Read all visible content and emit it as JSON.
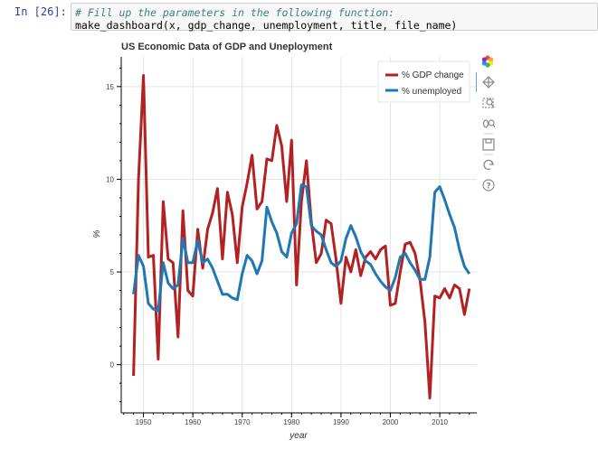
{
  "cell": {
    "prompt": "In [26]:",
    "comment": "# Fill up the parameters in the following function:",
    "code": "make_dashboard(x, gdp_change, unemployment, title, file_name)"
  },
  "toolbar": {
    "icons": [
      "bokeh-logo-icon",
      "pan-icon",
      "box-zoom-icon",
      "wheel-zoom-icon",
      "save-icon",
      "reset-icon",
      "help-icon"
    ]
  },
  "chart_data": {
    "type": "line",
    "title": "US Economic Data of GDP and Uneployment",
    "xlabel": "year",
    "ylabel": "%",
    "xlim": [
      1945.5,
      2017.5
    ],
    "ylim": [
      -2.6,
      16.6
    ],
    "xticks": [
      1950,
      1960,
      1970,
      1980,
      1990,
      2000,
      2010
    ],
    "yticks": [
      0,
      5,
      10,
      15
    ],
    "grid": true,
    "legend_position": "top-right",
    "x": [
      1948,
      1949,
      1950,
      1951,
      1952,
      1953,
      1954,
      1955,
      1956,
      1957,
      1958,
      1959,
      1960,
      1961,
      1962,
      1963,
      1964,
      1965,
      1966,
      1967,
      1968,
      1969,
      1970,
      1971,
      1972,
      1973,
      1974,
      1975,
      1976,
      1977,
      1978,
      1979,
      1980,
      1981,
      1982,
      1983,
      1984,
      1985,
      1986,
      1987,
      1988,
      1989,
      1990,
      1991,
      1992,
      1993,
      1994,
      1995,
      1996,
      1997,
      1998,
      1999,
      2000,
      2001,
      2002,
      2003,
      2004,
      2005,
      2006,
      2007,
      2008,
      2009,
      2010,
      2011,
      2012,
      2013,
      2014,
      2015,
      2016
    ],
    "series": [
      {
        "name": "% GDP change",
        "color": "#b22222",
        "values": [
          -0.6,
          10.0,
          15.6,
          5.8,
          5.9,
          0.3,
          8.8,
          5.7,
          5.5,
          1.5,
          8.3,
          4.0,
          3.7,
          7.3,
          5.2,
          7.3,
          8.2,
          9.5,
          5.7,
          9.3,
          8.1,
          5.5,
          8.5,
          9.8,
          11.3,
          8.4,
          8.8,
          11.1,
          11.0,
          12.9,
          11.8,
          8.8,
          12.1,
          4.3,
          8.8,
          11.0,
          7.7,
          5.5,
          6.0,
          7.8,
          7.6,
          5.7,
          3.3,
          5.8,
          5.0,
          6.2,
          4.8,
          5.8,
          6.1,
          5.7,
          6.2,
          6.4,
          3.2,
          3.3,
          5.0,
          6.5,
          6.6,
          6.0,
          4.6,
          2.3,
          -1.8,
          3.7,
          3.6,
          4.1,
          3.6,
          4.3,
          4.1,
          2.7,
          4.1
        ]
      },
      {
        "name": "% unemployed",
        "color": "#1f77b4",
        "values": [
          3.8,
          5.9,
          5.3,
          3.3,
          3.0,
          2.9,
          5.5,
          4.4,
          4.1,
          4.3,
          6.8,
          5.5,
          5.5,
          6.7,
          5.5,
          5.7,
          5.2,
          4.5,
          3.8,
          3.8,
          3.6,
          3.5,
          4.9,
          5.9,
          5.6,
          4.9,
          5.6,
          8.5,
          7.7,
          7.1,
          6.1,
          5.8,
          7.1,
          7.6,
          9.7,
          9.6,
          7.5,
          7.2,
          7.0,
          6.2,
          5.5,
          5.3,
          5.6,
          6.8,
          7.5,
          6.9,
          6.1,
          5.6,
          5.4,
          4.9,
          4.5,
          4.2,
          4.0,
          4.7,
          5.8,
          6.0,
          5.5,
          5.1,
          4.6,
          4.6,
          5.8,
          9.3,
          9.6,
          8.9,
          8.1,
          7.4,
          6.2,
          5.3,
          4.9
        ]
      }
    ]
  }
}
